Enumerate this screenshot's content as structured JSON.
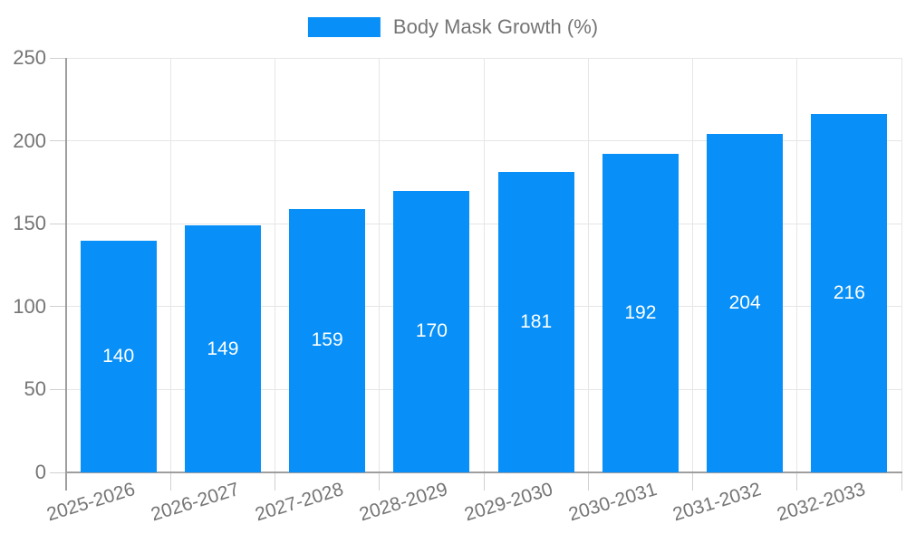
{
  "colors": {
    "bar": "#0890f8",
    "grid": "#e6e6e6",
    "tick": "#d0d0d0",
    "axis": "#9e9e9e",
    "label_text": "#757575",
    "bar_label_text": "#ffffff"
  },
  "chart_data": {
    "type": "bar",
    "title": "",
    "legend": {
      "position": "top",
      "label": "Body Mask Growth (%)"
    },
    "categories": [
      "2025-2026",
      "2026-2027",
      "2027-2028",
      "2028-2029",
      "2029-2030",
      "2030-2031",
      "2031-2032",
      "2032-2033"
    ],
    "series": [
      {
        "name": "Body Mask Growth (%)",
        "values": [
          140,
          149,
          159,
          170,
          181,
          192,
          204,
          216
        ]
      }
    ],
    "bar_labels": [
      "140",
      "149",
      "159",
      "170",
      "181",
      "192",
      "204",
      "216"
    ],
    "xlabel": "",
    "ylabel": "",
    "ylim": [
      0,
      250
    ],
    "yticks": [
      0,
      50,
      100,
      150,
      200,
      250
    ],
    "grid": true,
    "legend_position": "top-center",
    "bar_label_position": "inside-center"
  }
}
